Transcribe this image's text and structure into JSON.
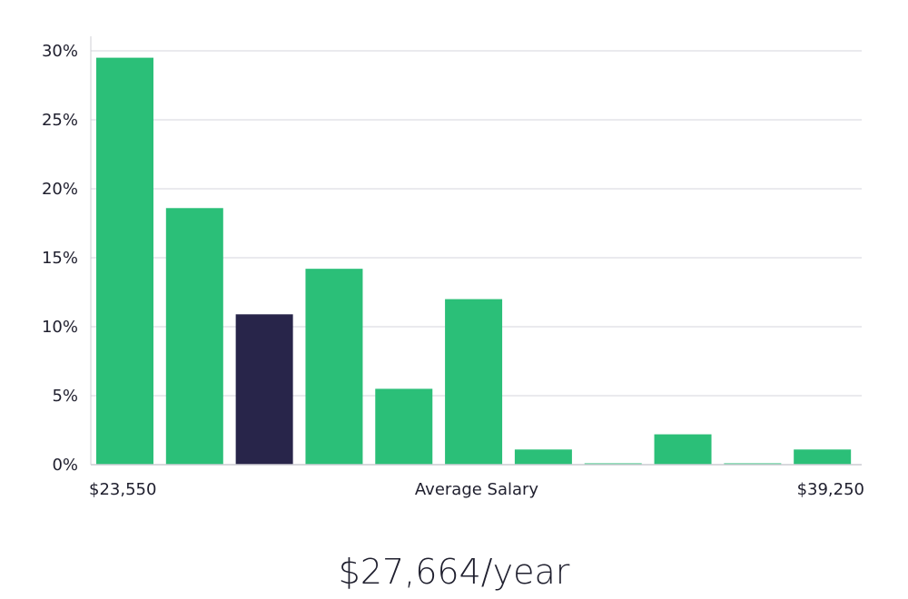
{
  "chart_data": {
    "type": "bar",
    "title": "",
    "xlabel": "Average Salary",
    "x_min_label": "$23,550",
    "x_max_label": "$39,250",
    "ylabel": "",
    "ylim": [
      0,
      30
    ],
    "yticks": [
      "0%",
      "5%",
      "10%",
      "15%",
      "20%",
      "25%",
      "30%"
    ],
    "grid": true,
    "values": [
      29.5,
      18.6,
      10.9,
      14.2,
      5.5,
      12.0,
      1.1,
      0.05,
      2.2,
      0.05,
      1.1
    ],
    "highlight_index": 2,
    "colors": {
      "bar": "#2bbf78",
      "highlight": "#28254a",
      "grid": "#e3e3e8",
      "axis": "#cfcfd6"
    }
  },
  "salary_text": "$27,664/year"
}
